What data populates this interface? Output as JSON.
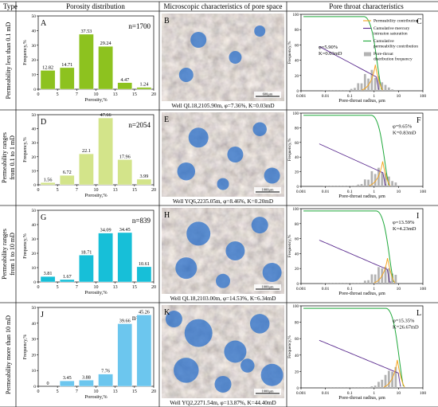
{
  "header": {
    "type": "Type",
    "porosity": "Porosity distribution",
    "micro": "Microscopic characteristics of pore space",
    "pore": "Pore throat characteristics"
  },
  "colors": {
    "bar_rows": [
      "#8dc21f",
      "#d3e48a",
      "#17bfd8",
      "#6cc6ee"
    ],
    "perm_line": "#f5a623",
    "mercury_line": "#5b2c8f",
    "cum_perm_line": "#1ea83a",
    "dist_bars": "#b3b3b3",
    "sep_line": "#222222"
  },
  "axes": {
    "hist_ylabel": "Frequency,%",
    "hist_xlabel": "Porosity,%",
    "pore_ylabel": "Frequency,%",
    "pore_xlabel": "Pore-throat radius, μm",
    "hist_xticks": [
      "0",
      "5",
      "7",
      "10",
      "13",
      "15",
      "20"
    ],
    "hist_yticks": [
      "0",
      "10",
      "20",
      "30",
      "40",
      "50"
    ],
    "pore_yticks": [
      "0",
      "20",
      "40",
      "60",
      "80",
      "100"
    ],
    "pore_xticks": [
      "0.001",
      "0.01",
      "0.1",
      "1",
      "10",
      "100"
    ]
  },
  "legend": {
    "perm": "Permeability contribution",
    "mercury_1": "Cumulative mercury",
    "mercury_2": "intrusion saturation",
    "cum_1": "Cumulative",
    "cum_2": "permeability contribution",
    "dist_1": "Pore-throat",
    "dist_2": "distribution frequency"
  },
  "rows": [
    {
      "type_lines": [
        "Permeability less than 0.1 mD"
      ],
      "hist_letter": "A",
      "n": "n=1700",
      "values": [
        12.82,
        14.71,
        37.53,
        29.24,
        4.47,
        1.24
      ],
      "labels": [
        "12.82",
        "14.71",
        "37.53",
        "29.24",
        "4.47",
        "1.24"
      ],
      "micro_letter": "B",
      "scale": "600μm",
      "caption": "Well QL18,2105.90m, φ=7.36%, K=0.03mD",
      "pore_letter": "C",
      "phi": "φ=5.90%",
      "k": "K=0.03mD"
    },
    {
      "type_lines": [
        "Permeability ranges",
        "from 0.1 to 1 mD"
      ],
      "hist_letter": "D",
      "n": "n=2054",
      "values": [
        1.56,
        6.72,
        22.1,
        47.66,
        17.96,
        3.99
      ],
      "labels": [
        "1.56",
        "6.72",
        "22.1",
        "47.66",
        "17.96",
        "3.99"
      ],
      "micro_letter": "E",
      "scale": "1000μm",
      "caption": "Well YQ6,2235.05m, φ=8.46%, K=0.20mD",
      "pore_letter": "F",
      "phi": "φ=9.65%",
      "k": "K=0.83mD"
    },
    {
      "type_lines": [
        "Permeability ranges",
        "from 1 to 10 mD"
      ],
      "hist_letter": "G",
      "n": "n=839",
      "values": [
        3.81,
        1.67,
        18.71,
        34.09,
        34.45,
        10.61
      ],
      "labels": [
        "3.81",
        "1.67",
        "18.71",
        "34.09",
        "34.45",
        "10.61"
      ],
      "micro_letter": "H",
      "scale": "1000μm",
      "caption": "Well QL18,2103.00m, φ=14.53%, K=6.34mD",
      "pore_letter": "I",
      "phi": "φ=13.59%",
      "k": "K=4.23mD"
    },
    {
      "type_lines": [
        "Permeability more than 10 mD"
      ],
      "hist_letter": "J",
      "n": "n=235",
      "values": [
        0,
        3.45,
        3.88,
        7.76,
        39.66,
        45.26
      ],
      "labels": [
        "0",
        "3.45",
        "3.88",
        "7.76",
        "39.66",
        "45.26"
      ],
      "micro_letter": "K",
      "scale": "1000μm",
      "caption": "Well YQ2,2271.54m, φ=13.87%, K=44.40mD",
      "pore_letter": "L",
      "phi": "φ=15.35%",
      "k": "K=26.67mD"
    }
  ]
}
